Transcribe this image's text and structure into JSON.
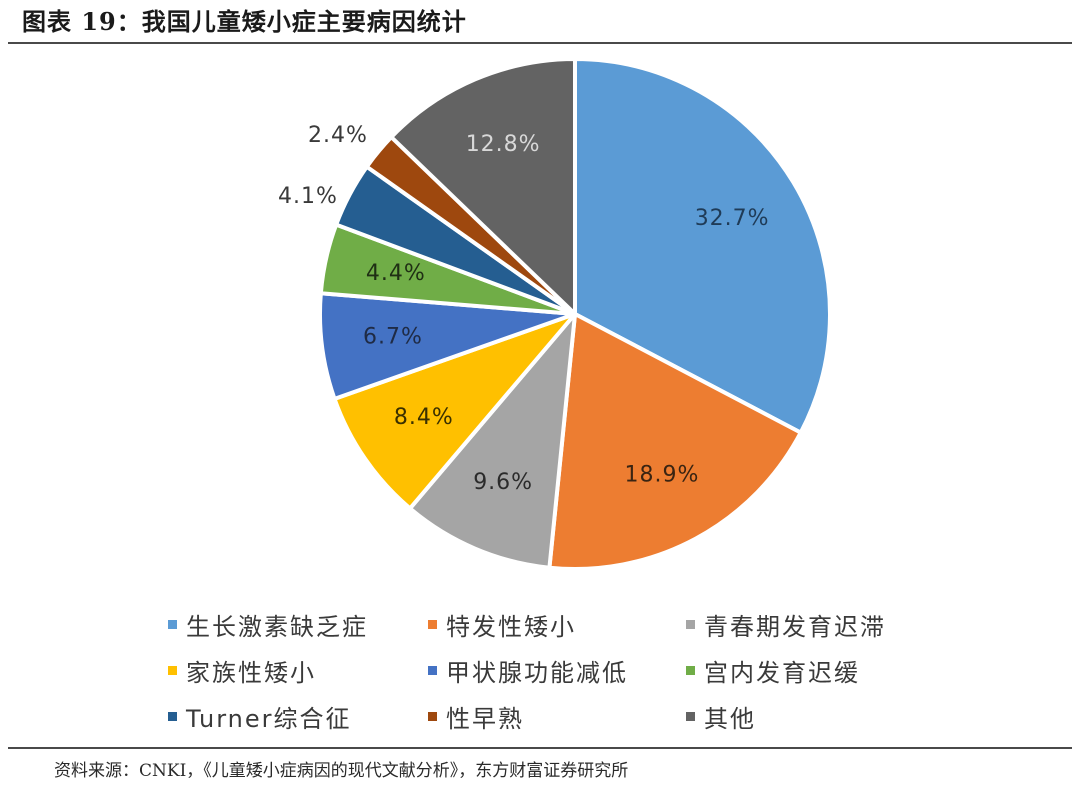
{
  "header": {
    "title": "图表 19：我国儿童矮小症主要病因统计"
  },
  "chart_data": {
    "type": "pie",
    "title": "",
    "start_angle_deg": 0,
    "direction": "clockwise",
    "slices": [
      {
        "name": "生长激素缺乏症",
        "value": 32.7,
        "label": "32.7%",
        "color": "#5B9BD5"
      },
      {
        "name": "特发性矮小",
        "value": 18.9,
        "label": "18.9%",
        "color": "#ED7D31"
      },
      {
        "name": "青春期发育迟滞",
        "value": 9.6,
        "label": "9.6%",
        "color": "#A5A5A5"
      },
      {
        "name": "家族性矮小",
        "value": 8.4,
        "label": "8.4%",
        "color": "#FFC000"
      },
      {
        "name": "甲状腺功能减低",
        "value": 6.7,
        "label": "6.7%",
        "color": "#4472C4"
      },
      {
        "name": "宫内发育迟缓",
        "value": 4.4,
        "label": "4.4%",
        "color": "#70AD47"
      },
      {
        "name": "Turner综合征",
        "value": 4.1,
        "label": "4.1%",
        "color": "#255E91"
      },
      {
        "name": "性早熟",
        "value": 2.4,
        "label": "2.4%",
        "color": "#9E480E"
      },
      {
        "name": "其他",
        "value": 12.8,
        "label": "12.8%",
        "color": "#636363"
      }
    ],
    "legend_position": "bottom"
  },
  "footer": {
    "source": "资料来源：CNKI，《儿童矮小症病因的现代文献分析》，东方财富证券研究所"
  }
}
